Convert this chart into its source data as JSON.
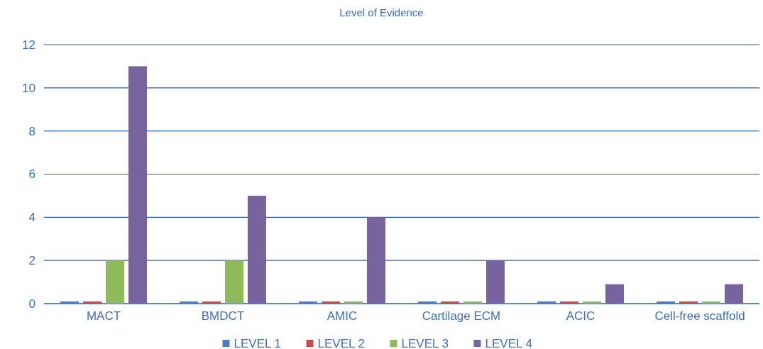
{
  "chart_data": {
    "type": "bar",
    "title": "Level of Evidence",
    "categories": [
      "MACT",
      "BMDCT",
      "AMIC",
      "Cartilage ECM",
      "ACIC",
      "Cell-free scaffold"
    ],
    "series": [
      {
        "name": "LEVEL 1",
        "color": "#4a7cc4",
        "values": [
          0.1,
          0.1,
          0.1,
          0.1,
          0.1,
          0.1
        ]
      },
      {
        "name": "LEVEL 2",
        "color": "#cc4b45",
        "values": [
          0.1,
          0.1,
          0.1,
          0.1,
          0.1,
          0.1
        ]
      },
      {
        "name": "LEVEL 3",
        "color": "#8fba5a",
        "values": [
          2,
          2,
          0.1,
          0.1,
          0.1,
          0.1
        ]
      },
      {
        "name": "LEVEL 4",
        "color": "#77649e",
        "values": [
          11,
          5,
          4,
          2,
          0.9,
          0.9
        ]
      }
    ],
    "ylim": [
      0,
      12
    ],
    "yticks": [
      0,
      2,
      4,
      6,
      8,
      10,
      12
    ],
    "grid": "y",
    "legend": "bottom"
  }
}
